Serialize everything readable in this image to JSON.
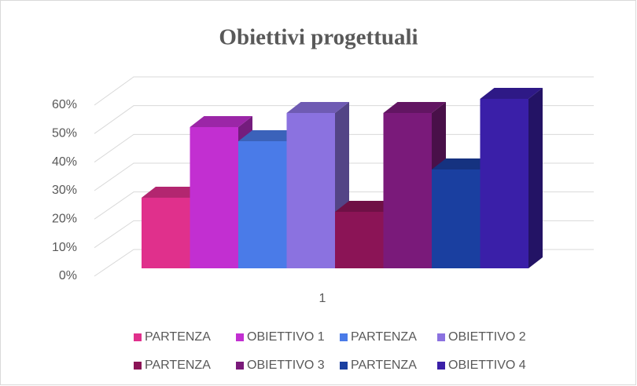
{
  "chart_data": {
    "type": "bar3d",
    "title": "Obiettivi progettuali",
    "categories": [
      "1"
    ],
    "series": [
      {
        "name": "PARTENZA",
        "color": "#e0308c",
        "values": [
          25
        ]
      },
      {
        "name": "OBIETTIVO 1",
        "color": "#c22fd1",
        "values": [
          50
        ]
      },
      {
        "name": "PARTENZA",
        "color": "#4a7be8",
        "values": [
          45
        ]
      },
      {
        "name": "OBIETTIVO 2",
        "color": "#8b72e0",
        "values": [
          55
        ]
      },
      {
        "name": "PARTENZA",
        "color": "#8b1456",
        "values": [
          20
        ]
      },
      {
        "name": "OBIETTIVO 3",
        "color": "#7a1a7a",
        "values": [
          55
        ]
      },
      {
        "name": "PARTENZA",
        "color": "#1a3fa0",
        "values": [
          35
        ]
      },
      {
        "name": "OBIETTIVO 4",
        "color": "#3a1fa8",
        "values": [
          60
        ]
      }
    ],
    "ylim": [
      0,
      60
    ],
    "yticks": [
      {
        "value": 0,
        "label": "0%"
      },
      {
        "value": 10,
        "label": "10%"
      },
      {
        "value": 20,
        "label": "20%"
      },
      {
        "value": 30,
        "label": "30%"
      },
      {
        "value": 40,
        "label": "40%"
      },
      {
        "value": 50,
        "label": "50%"
      },
      {
        "value": 60,
        "label": "60%"
      }
    ],
    "grid": true,
    "legend": "bottom"
  }
}
